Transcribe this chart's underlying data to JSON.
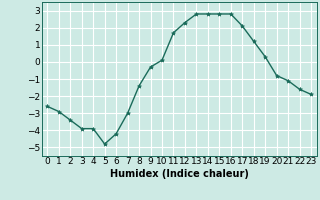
{
  "x": [
    0,
    1,
    2,
    3,
    4,
    5,
    6,
    7,
    8,
    9,
    10,
    11,
    12,
    13,
    14,
    15,
    16,
    17,
    18,
    19,
    20,
    21,
    22,
    23
  ],
  "y": [
    -2.6,
    -2.9,
    -3.4,
    -3.9,
    -3.9,
    -4.8,
    -4.2,
    -3.0,
    -1.4,
    -0.3,
    0.1,
    1.7,
    2.3,
    2.8,
    2.8,
    2.8,
    2.8,
    2.1,
    1.2,
    0.3,
    -0.8,
    -1.1,
    -1.6,
    -1.9
  ],
  "line_color": "#1a6b5a",
  "marker": "*",
  "marker_size": 3,
  "bg_color": "#cdeae4",
  "grid_color": "#ffffff",
  "xlabel": "Humidex (Indice chaleur)",
  "xlim": [
    -0.5,
    23.5
  ],
  "ylim": [
    -5.5,
    3.5
  ],
  "yticks": [
    -5,
    -4,
    -3,
    -2,
    -1,
    0,
    1,
    2,
    3
  ],
  "xtick_labels": [
    "0",
    "1",
    "2",
    "3",
    "4",
    "5",
    "6",
    "7",
    "8",
    "9",
    "10",
    "11",
    "12",
    "13",
    "14",
    "15",
    "16",
    "17",
    "18",
    "19",
    "20",
    "21",
    "22",
    "23"
  ],
  "label_fontsize": 7,
  "tick_fontsize": 6.5
}
